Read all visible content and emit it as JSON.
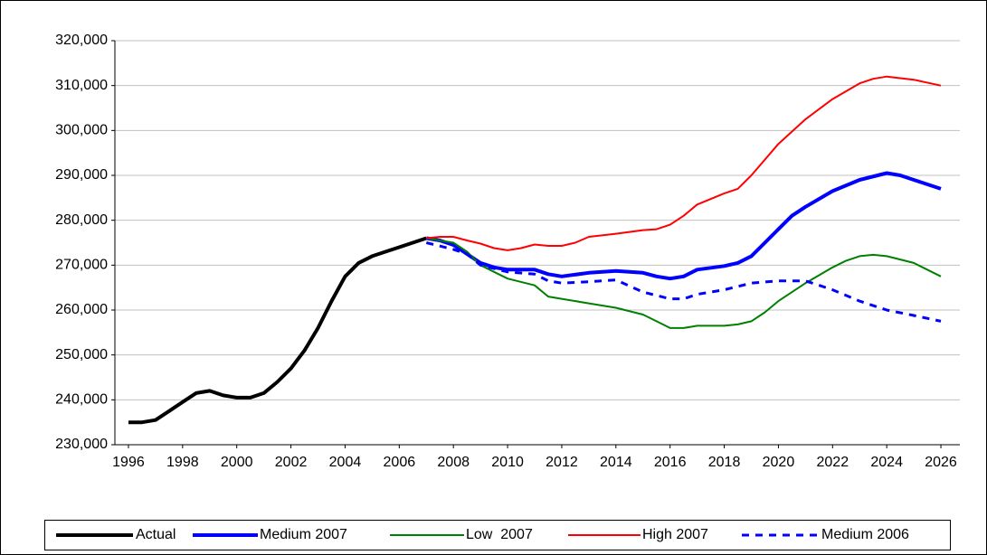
{
  "chart_data": {
    "type": "line",
    "xlim": [
      1995.5,
      2026.7
    ],
    "xticks": [
      1996,
      1998,
      2000,
      2002,
      2004,
      2006,
      2008,
      2010,
      2012,
      2014,
      2016,
      2018,
      2020,
      2022,
      2024,
      2026
    ],
    "ylim": [
      230000,
      320000
    ],
    "yticks": [
      {
        "value": 230000,
        "label": "230,000"
      },
      {
        "value": 240000,
        "label": "240,000"
      },
      {
        "value": 250000,
        "label": "250,000"
      },
      {
        "value": 260000,
        "label": "260,000"
      },
      {
        "value": 270000,
        "label": "270,000"
      },
      {
        "value": 280000,
        "label": "280,000"
      },
      {
        "value": 290000,
        "label": "290,000"
      },
      {
        "value": 300000,
        "label": "300,000"
      },
      {
        "value": 310000,
        "label": "310,000"
      },
      {
        "value": 320000,
        "label": "320,000"
      }
    ],
    "grid": true,
    "legend": "bottom",
    "series": [
      {
        "name": "Actual",
        "color": "#000000",
        "width": 4,
        "dash": false,
        "x": [
          1996,
          1996.5,
          1997,
          1997.5,
          1998,
          1998.5,
          1999,
          1999.5,
          2000,
          2000.5,
          2001,
          2001.5,
          2002,
          2002.5,
          2003,
          2003.5,
          2004,
          2004.5,
          2005,
          2005.5,
          2006,
          2006.5,
          2007
        ],
        "values": [
          235000,
          235000,
          235500,
          237500,
          239500,
          241500,
          242000,
          241000,
          240500,
          240500,
          241500,
          244000,
          247000,
          251000,
          256000,
          262000,
          267500,
          270500,
          272000,
          273000,
          274000,
          275000,
          276000
        ]
      },
      {
        "name": "Medium 2007",
        "color": "#0000ff",
        "width": 4,
        "dash": false,
        "x": [
          2007,
          2007.5,
          2008,
          2008.5,
          2009,
          2009.5,
          2010,
          2011,
          2011.5,
          2012,
          2013,
          2014,
          2015,
          2015.5,
          2016,
          2016.5,
          2017,
          2018,
          2018.5,
          2019,
          2019.5,
          2020,
          2020.5,
          2021,
          2022,
          2023,
          2024,
          2024.5,
          2025,
          2026
        ],
        "values": [
          276000,
          275500,
          274500,
          272500,
          270500,
          269500,
          269000,
          269000,
          268000,
          267500,
          268300,
          268700,
          268300,
          267500,
          267000,
          267500,
          269000,
          269800,
          270500,
          272000,
          275000,
          278000,
          281000,
          283000,
          286500,
          289000,
          290500,
          290000,
          289000,
          287000
        ]
      },
      {
        "name": "Low  2007",
        "color": "#008000",
        "width": 2,
        "dash": false,
        "x": [
          2007,
          2008,
          2008.5,
          2009,
          2009.5,
          2010,
          2011,
          2011.5,
          2012,
          2013,
          2014,
          2015,
          2015.5,
          2016,
          2016.5,
          2017,
          2018,
          2018.5,
          2019,
          2019.5,
          2020,
          2021,
          2022,
          2022.5,
          2023,
          2023.5,
          2024,
          2025,
          2026
        ],
        "values": [
          276000,
          275000,
          273000,
          270000,
          268500,
          267000,
          265500,
          263000,
          262500,
          261500,
          260500,
          259000,
          257500,
          256000,
          256000,
          256500,
          256500,
          256800,
          257500,
          259500,
          262000,
          266000,
          269500,
          271000,
          272000,
          272300,
          272000,
          270500,
          267500
        ]
      },
      {
        "name": "High 2007",
        "color": "#ff0000",
        "width": 2,
        "dash": false,
        "x": [
          2007,
          2007.5,
          2008,
          2008.5,
          2009,
          2009.5,
          2010,
          2010.5,
          2011,
          2011.5,
          2012,
          2012.5,
          2013,
          2014,
          2015,
          2015.5,
          2016,
          2016.5,
          2017,
          2018,
          2018.5,
          2019,
          2019.5,
          2020,
          2021,
          2022,
          2023,
          2023.5,
          2024,
          2025,
          2026
        ],
        "values": [
          276000,
          276300,
          276300,
          275500,
          274800,
          273800,
          273300,
          273800,
          274600,
          274300,
          274300,
          275000,
          276300,
          277000,
          277800,
          278000,
          279000,
          281000,
          283500,
          286000,
          287000,
          290000,
          293500,
          297000,
          302500,
          307000,
          310500,
          311500,
          312000,
          311300,
          310000
        ]
      },
      {
        "name": "Medium 2006",
        "color": "#0000ff",
        "width": 3,
        "dash": true,
        "x": [
          2007,
          2008,
          2008.5,
          2009,
          2010,
          2011,
          2011.5,
          2012,
          2013,
          2014,
          2015,
          2016,
          2016.5,
          2017,
          2018,
          2019,
          2020,
          2021,
          2022,
          2023,
          2024,
          2025,
          2026
        ],
        "values": [
          275000,
          273500,
          272500,
          270000,
          268500,
          268000,
          266500,
          266000,
          266300,
          266700,
          264000,
          262500,
          262500,
          263500,
          264500,
          266000,
          266500,
          266500,
          264500,
          262000,
          260000,
          258800,
          257500
        ]
      }
    ]
  }
}
